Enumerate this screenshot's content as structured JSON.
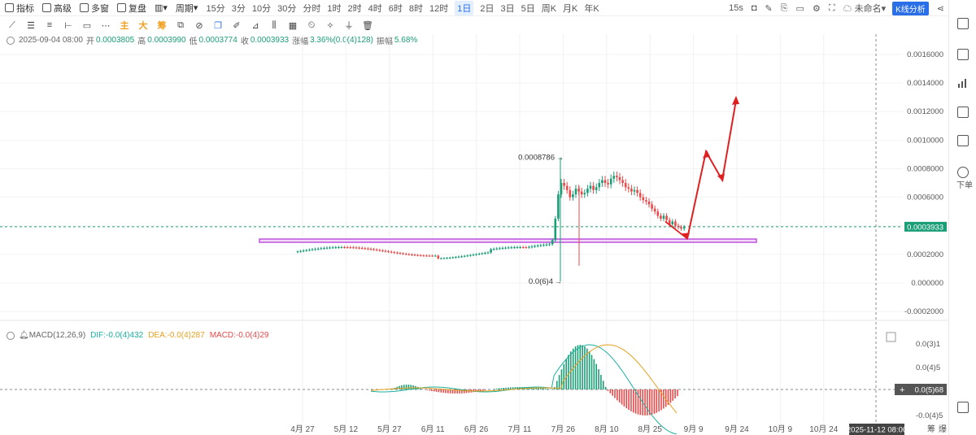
{
  "toolbar": {
    "indicators": "指标",
    "advanced": "高级",
    "multi_window": "多窗",
    "replay": "复盘",
    "period": "周期",
    "periods": [
      "15分",
      "3分",
      "10分",
      "30分",
      "分时",
      "1时",
      "2时",
      "4时",
      "6时",
      "8时",
      "12时",
      "1日",
      "2日",
      "3日",
      "5日",
      "周K",
      "月K",
      "年K"
    ],
    "active_period": "1日",
    "right_interval": "15s",
    "layout_name": "未命名",
    "kline_analysis": "K线分析"
  },
  "draw_tools": {
    "main": "主",
    "large": "大",
    "chips": "筹"
  },
  "info": {
    "date": "2025-09-04 08:00",
    "open_label": "开",
    "open": "0.0003805",
    "high_label": "高",
    "high": "0.0003990",
    "low_label": "低",
    "low": "0.0003774",
    "close_label": "收",
    "close": "0.0003933",
    "change_label": "涨幅",
    "change": "3.36%(0.0(4)128)",
    "amplitude_label": "振幅",
    "amplitude": "5.68%"
  },
  "macd": {
    "label": "MACD(12,26,9)",
    "dif": "DIF:-0.0(4)432",
    "dea": "DEA:-0.0(4)287",
    "macd": "MACD:-0.0(4)29",
    "axis_labels": [
      "0.0(3)1",
      "0.0(4)5",
      "0.0(5)68",
      "-0.0(4)5"
    ]
  },
  "price_axis": {
    "labels": [
      "0.0016000",
      "0.0014000",
      "0.0012000",
      "0.0010000",
      "0.0008000",
      "0.0006000",
      "0.0004000",
      "0.0002000",
      "0.000000",
      "-0.0002000"
    ],
    "current_price": "0.0003933"
  },
  "time_axis": {
    "labels": [
      "4月 27",
      "5月 12",
      "5月 27",
      "6月 11",
      "6月 26",
      "7月 11",
      "7月 26",
      "8月 10",
      "8月 25",
      "9月 9",
      "9月 24",
      "10月 9",
      "10月 24"
    ],
    "crosshair_date": "2025-11-12 08:00",
    "right_labels": [
      "筹",
      "爆"
    ]
  },
  "annotations": {
    "high_marker": "0.0008786",
    "low_marker": "0.0(6)4"
  },
  "sidebar": {
    "next_label": "下单"
  },
  "colors": {
    "up": "#1a9e76",
    "down": "#e84a4a",
    "accent": "#2a6ee8",
    "support_band": "#c050e0",
    "arrow": "#e02020"
  }
}
